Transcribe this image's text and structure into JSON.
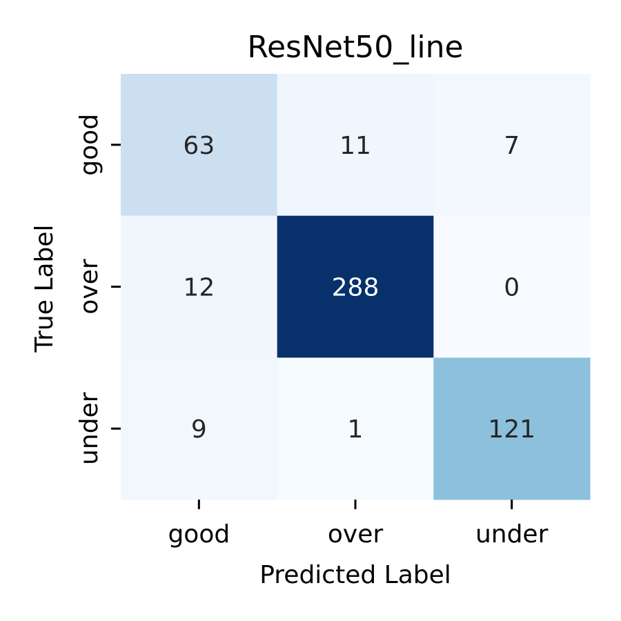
{
  "chart_data": {
    "type": "heatmap",
    "title": "ResNet50_line",
    "xlabel": "Predicted Label",
    "ylabel": "True Label",
    "x_categories": [
      "good",
      "over",
      "under"
    ],
    "y_categories": [
      "good",
      "over",
      "under"
    ],
    "values": [
      [
        63,
        11,
        7
      ],
      [
        12,
        288,
        0
      ],
      [
        9,
        1,
        121
      ]
    ],
    "color_range": [
      0,
      288
    ],
    "colormap": "Blues",
    "colorbar": false,
    "grid": false
  }
}
